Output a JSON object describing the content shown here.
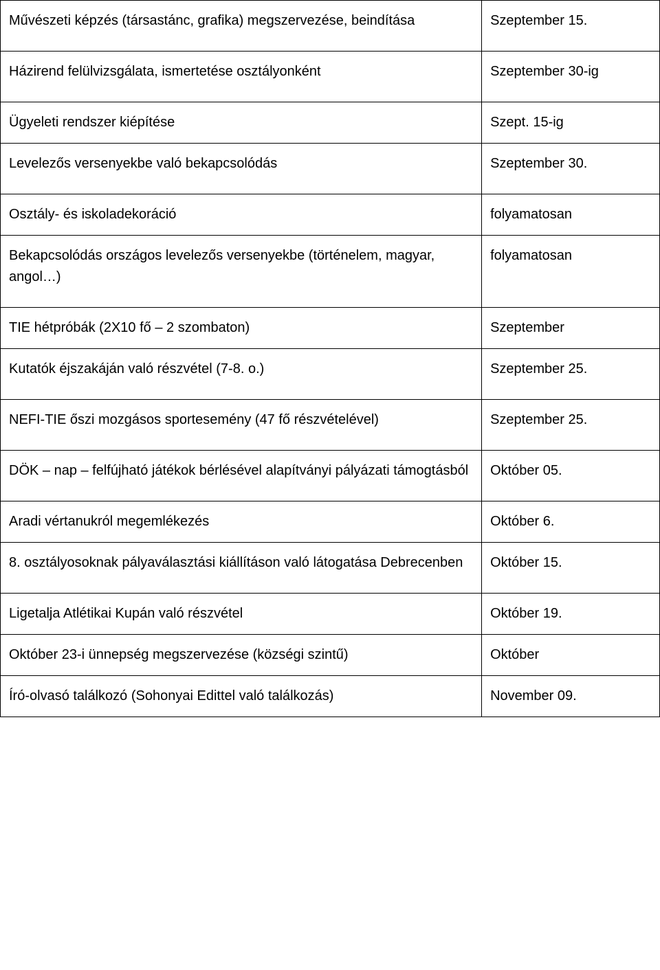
{
  "table": {
    "border_color": "#000000",
    "background_color": "#ffffff",
    "text_color": "#000000",
    "font_family": "Comic Sans MS",
    "font_size_pt": 15,
    "columns": [
      {
        "width_pct": 73,
        "align": "left"
      },
      {
        "width_pct": 27,
        "align": "left"
      }
    ],
    "rows": [
      {
        "left": "Művészeti képzés (társastánc, grafika) megszervezése, beindítása",
        "right": "Szeptember 15."
      },
      {
        "left": "Házirend felülvizsgálata, ismertetése osztályonként",
        "right": "Szeptember 30-ig"
      },
      {
        "left": "Ügyeleti rendszer kiépítése",
        "right": "Szept. 15-ig"
      },
      {
        "left": "Levelezős versenyekbe való bekapcsolódás",
        "right": "Szeptember 30."
      },
      {
        "left": "Osztály- és iskoladekoráció",
        "right": "folyamatosan"
      },
      {
        "left": "Bekapcsolódás országos levelezős versenyekbe (történelem, magyar, angol…)",
        "right": "folyamatosan"
      },
      {
        "left": "TIE hétpróbák (2X10 fő – 2 szombaton)",
        "right": "Szeptember"
      },
      {
        "left": "Kutatók éjszakáján való részvétel (7-8. o.)",
        "right": "Szeptember 25."
      },
      {
        "left": "NEFI-TIE őszi mozgásos sportesemény (47 fő részvételével)",
        "right": "Szeptember 25."
      },
      {
        "left": "DÖK – nap – felfújható játékok bérlésével alapítványi pályázati támogtásból",
        "right": "Október 05."
      },
      {
        "left": "Aradi vértanukról megemlékezés",
        "right": "Október 6."
      },
      {
        "left": "8. osztályosoknak pályaválasztási kiállításon való látogatása Debrecenben",
        "right": "Október 15."
      },
      {
        "left": "Ligetalja Atlétikai Kupán való részvétel",
        "right": "Október 19."
      },
      {
        "left": "Október 23-i ünnepség megszervezése (községi szintű)",
        "right": "Október"
      },
      {
        "left": "Író-olvasó találkozó (Sohonyai Edittel való találkozás)",
        "right": "November 09."
      }
    ]
  }
}
